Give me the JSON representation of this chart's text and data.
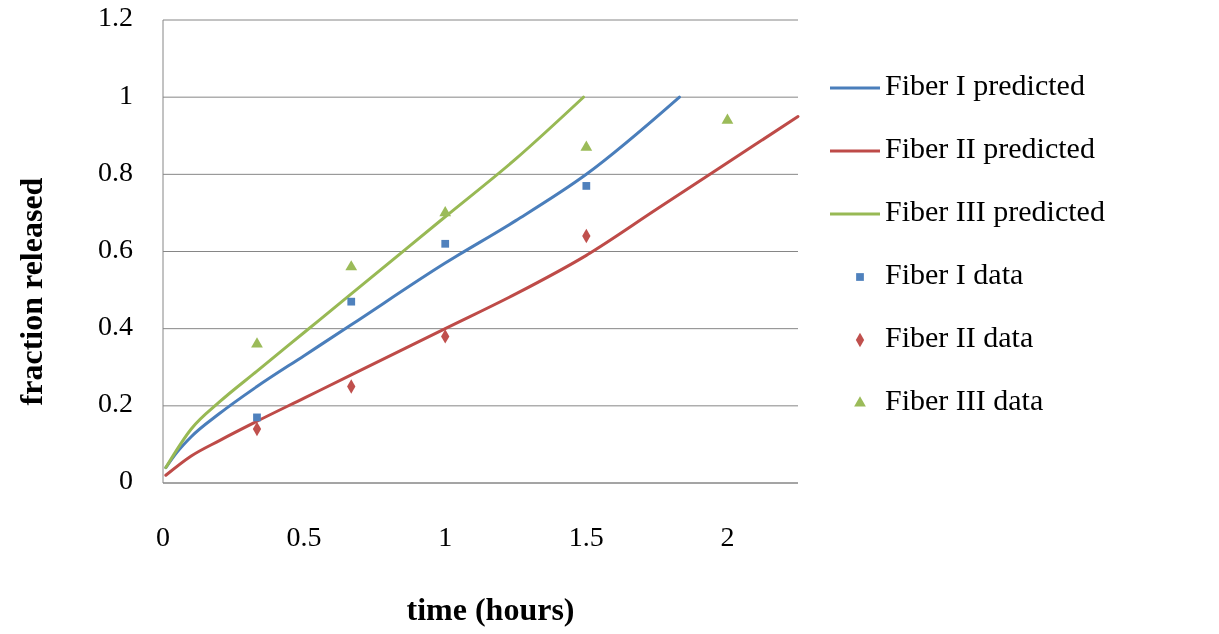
{
  "chart_data": {
    "type": "scatter",
    "xlabel": "time (hours)",
    "ylabel": "fraction released",
    "xlim": [
      0,
      2.25
    ],
    "xticks": [
      0,
      0.5,
      1,
      1.5,
      2
    ],
    "ylim": [
      0,
      1.2
    ],
    "yticks": [
      0,
      0.2,
      0.4,
      0.6,
      0.8,
      1,
      1.2
    ],
    "grid": "y",
    "legend": "right",
    "series": [
      {
        "name": "Fiber I predicted",
        "type": "line",
        "marker": "none",
        "color": "#4a7ebb",
        "x": [
          0.01,
          0.05,
          0.1,
          0.2,
          0.333,
          0.5,
          0.667,
          1,
          1.25,
          1.5,
          1.83
        ],
        "values": [
          0.04,
          0.08,
          0.12,
          0.18,
          0.25,
          0.33,
          0.41,
          0.57,
          0.68,
          0.8,
          1
        ]
      },
      {
        "name": "Fiber II predicted",
        "type": "line",
        "marker": "none",
        "color": "#be4b48",
        "x": [
          0.01,
          0.1,
          0.2,
          0.333,
          0.5,
          0.667,
          1,
          1.25,
          1.5,
          1.75,
          2,
          2.25
        ],
        "values": [
          0.02,
          0.07,
          0.11,
          0.16,
          0.22,
          0.28,
          0.4,
          0.49,
          0.59,
          0.71,
          0.83,
          0.95
        ]
      },
      {
        "name": "Fiber III predicted",
        "type": "line",
        "marker": "none",
        "color": "#98b954",
        "x": [
          0.01,
          0.1,
          0.2,
          0.333,
          0.5,
          0.667,
          1,
          1.25,
          1.49
        ],
        "values": [
          0.04,
          0.14,
          0.21,
          0.29,
          0.39,
          0.49,
          0.69,
          0.84,
          1
        ]
      },
      {
        "name": "Fiber I data",
        "type": "scatter",
        "marker": "square",
        "color": "#4f81bd",
        "x": [
          0.333,
          0.667,
          1,
          1.5
        ],
        "values": [
          0.17,
          0.47,
          0.62,
          0.77
        ]
      },
      {
        "name": "Fiber II data",
        "type": "scatter",
        "marker": "diamond",
        "color": "#c0504d",
        "x": [
          0.333,
          0.667,
          1,
          1.5
        ],
        "values": [
          0.14,
          0.25,
          0.38,
          0.64
        ]
      },
      {
        "name": "Fiber III data",
        "type": "scatter",
        "marker": "triangle",
        "color": "#9bbb59",
        "x": [
          0.333,
          0.667,
          1,
          1.5,
          2
        ],
        "values": [
          0.36,
          0.56,
          0.7,
          0.87,
          0.94
        ]
      }
    ]
  }
}
